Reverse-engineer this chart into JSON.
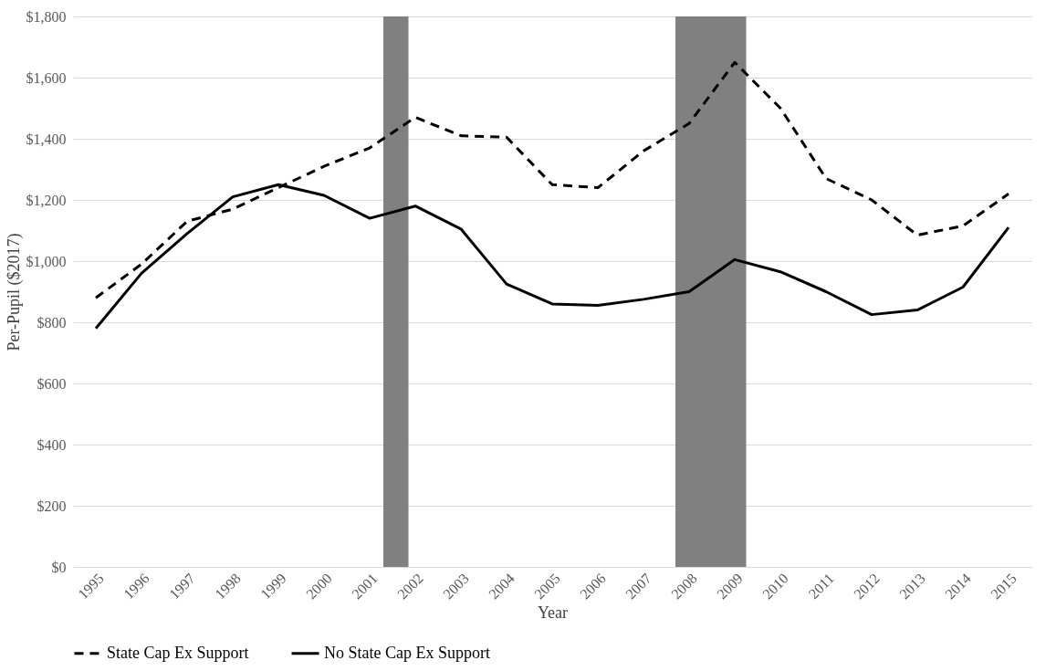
{
  "chart_data": {
    "type": "line",
    "xlabel": "Year",
    "ylabel": "Per-Pupil ($2017)",
    "x": [
      1995,
      1996,
      1997,
      1998,
      1999,
      2000,
      2001,
      2002,
      2003,
      2004,
      2005,
      2006,
      2007,
      2008,
      2009,
      2010,
      2011,
      2012,
      2013,
      2014,
      2015
    ],
    "xlim": [
      1994.5,
      2015.5
    ],
    "xticks": [
      1995,
      1996,
      1997,
      1998,
      1999,
      2000,
      2001,
      2002,
      2003,
      2004,
      2005,
      2006,
      2007,
      2008,
      2009,
      2010,
      2011,
      2012,
      2013,
      2014,
      2015
    ],
    "ylim": [
      0,
      1800
    ],
    "yticks": [
      {
        "value": 0,
        "label": "$0"
      },
      {
        "value": 200,
        "label": "$200"
      },
      {
        "value": 400,
        "label": "$400"
      },
      {
        "value": 600,
        "label": "$600"
      },
      {
        "value": 800,
        "label": "$800"
      },
      {
        "value": 1000,
        "label": "$1,000"
      },
      {
        "value": 1200,
        "label": "$1,200"
      },
      {
        "value": 1400,
        "label": "$1,400"
      },
      {
        "value": 1600,
        "label": "$1,600"
      },
      {
        "value": 1800,
        "label": "$1,800"
      }
    ],
    "series": [
      {
        "name": "State Cap Ex Support",
        "color": "#000000",
        "line_style": "dashed",
        "values": [
          880,
          990,
          1130,
          1170,
          1240,
          1310,
          1370,
          1470,
          1410,
          1405,
          1250,
          1240,
          1360,
          1450,
          1650,
          1500,
          1270,
          1200,
          1085,
          1115,
          1220
        ]
      },
      {
        "name": "No State Cap Ex Support",
        "color": "#000000",
        "line_style": "solid",
        "values": [
          780,
          960,
          1090,
          1210,
          1250,
          1215,
          1140,
          1180,
          1105,
          925,
          860,
          855,
          875,
          900,
          1005,
          965,
          900,
          825,
          840,
          915,
          1110
        ]
      }
    ],
    "bands": [
      {
        "axis": "x",
        "from": 2001.3,
        "to": 2001.85,
        "color": "#808080"
      },
      {
        "axis": "x",
        "from": 2007.7,
        "to": 2009.25,
        "color": "#808080"
      }
    ],
    "grid": "y",
    "legend": "bottom"
  }
}
